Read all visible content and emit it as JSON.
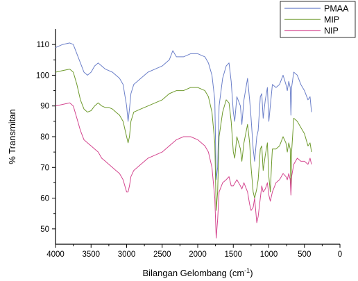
{
  "chart_data": {
    "type": "line",
    "xlabel": "Bilangan Gelombang (cm",
    "xlabel_sup": "-1",
    "xlabel_end": ")",
    "ylabel": "% Transmitan",
    "xlim": [
      4000,
      0
    ],
    "ylim": [
      45,
      115
    ],
    "x_ticks": [
      4000,
      3500,
      3000,
      2500,
      2000,
      1500,
      1000,
      500,
      0
    ],
    "y_ticks": [
      50,
      60,
      70,
      80,
      90,
      100,
      110
    ],
    "legend_position": "top-right",
    "grid": false,
    "series": [
      {
        "name": "PMAA",
        "color": "#6b7fc9",
        "points": [
          [
            4000,
            109
          ],
          [
            3900,
            110
          ],
          [
            3800,
            110.5
          ],
          [
            3750,
            110
          ],
          [
            3700,
            107
          ],
          [
            3650,
            104
          ],
          [
            3600,
            101
          ],
          [
            3550,
            100
          ],
          [
            3500,
            101
          ],
          [
            3450,
            103
          ],
          [
            3400,
            104
          ],
          [
            3350,
            103
          ],
          [
            3300,
            102
          ],
          [
            3250,
            101.5
          ],
          [
            3200,
            101
          ],
          [
            3150,
            100
          ],
          [
            3100,
            99
          ],
          [
            3050,
            97
          ],
          [
            3000,
            90
          ],
          [
            2980,
            85
          ],
          [
            2960,
            89
          ],
          [
            2940,
            94
          ],
          [
            2900,
            97
          ],
          [
            2800,
            99
          ],
          [
            2700,
            101
          ],
          [
            2600,
            102
          ],
          [
            2500,
            103
          ],
          [
            2400,
            105
          ],
          [
            2350,
            108
          ],
          [
            2300,
            106
          ],
          [
            2200,
            106
          ],
          [
            2100,
            107
          ],
          [
            2000,
            107
          ],
          [
            1900,
            106
          ],
          [
            1850,
            104
          ],
          [
            1800,
            100
          ],
          [
            1760,
            92
          ],
          [
            1740,
            66
          ],
          [
            1720,
            70
          ],
          [
            1700,
            90
          ],
          [
            1650,
            99
          ],
          [
            1600,
            103
          ],
          [
            1560,
            104
          ],
          [
            1530,
            98
          ],
          [
            1500,
            88
          ],
          [
            1480,
            85
          ],
          [
            1450,
            93
          ],
          [
            1400,
            90
          ],
          [
            1380,
            84
          ],
          [
            1350,
            92
          ],
          [
            1300,
            99
          ],
          [
            1270,
            92
          ],
          [
            1250,
            86
          ],
          [
            1220,
            76
          ],
          [
            1200,
            72
          ],
          [
            1170,
            80
          ],
          [
            1150,
            82
          ],
          [
            1120,
            93
          ],
          [
            1100,
            94
          ],
          [
            1080,
            86
          ],
          [
            1050,
            92
          ],
          [
            1020,
            96
          ],
          [
            1000,
            85
          ],
          [
            980,
            90
          ],
          [
            950,
            97
          ],
          [
            900,
            96
          ],
          [
            850,
            97
          ],
          [
            800,
            100
          ],
          [
            760,
            97
          ],
          [
            740,
            95
          ],
          [
            720,
            98
          ],
          [
            700,
            96
          ],
          [
            690,
            87
          ],
          [
            680,
            96
          ],
          [
            650,
            101
          ],
          [
            600,
            100
          ],
          [
            550,
            97
          ],
          [
            500,
            95
          ],
          [
            450,
            92
          ],
          [
            420,
            93
          ],
          [
            400,
            88
          ]
        ]
      },
      {
        "name": "MIP",
        "color": "#6e9a2c",
        "points": [
          [
            4000,
            101
          ],
          [
            3900,
            101.5
          ],
          [
            3800,
            102
          ],
          [
            3750,
            101
          ],
          [
            3700,
            97
          ],
          [
            3650,
            92
          ],
          [
            3600,
            89
          ],
          [
            3550,
            88
          ],
          [
            3500,
            88.5
          ],
          [
            3450,
            90
          ],
          [
            3400,
            91
          ],
          [
            3350,
            90
          ],
          [
            3300,
            89.5
          ],
          [
            3250,
            89.5
          ],
          [
            3200,
            89
          ],
          [
            3150,
            88
          ],
          [
            3100,
            87
          ],
          [
            3050,
            85
          ],
          [
            3000,
            80
          ],
          [
            2980,
            78
          ],
          [
            2960,
            80
          ],
          [
            2940,
            85
          ],
          [
            2900,
            88
          ],
          [
            2800,
            89
          ],
          [
            2700,
            90
          ],
          [
            2600,
            91
          ],
          [
            2500,
            92
          ],
          [
            2400,
            94
          ],
          [
            2300,
            95
          ],
          [
            2200,
            95
          ],
          [
            2100,
            96
          ],
          [
            2000,
            96
          ],
          [
            1900,
            95
          ],
          [
            1850,
            93
          ],
          [
            1800,
            88
          ],
          [
            1760,
            78
          ],
          [
            1740,
            56
          ],
          [
            1720,
            62
          ],
          [
            1700,
            80
          ],
          [
            1650,
            88
          ],
          [
            1600,
            92
          ],
          [
            1560,
            91
          ],
          [
            1530,
            85
          ],
          [
            1500,
            75
          ],
          [
            1480,
            73
          ],
          [
            1450,
            80
          ],
          [
            1400,
            76
          ],
          [
            1380,
            72
          ],
          [
            1350,
            78
          ],
          [
            1300,
            84
          ],
          [
            1270,
            78
          ],
          [
            1250,
            70
          ],
          [
            1220,
            62
          ],
          [
            1200,
            60
          ],
          [
            1170,
            63
          ],
          [
            1150,
            66
          ],
          [
            1120,
            76
          ],
          [
            1100,
            77
          ],
          [
            1080,
            69
          ],
          [
            1050,
            74
          ],
          [
            1020,
            78
          ],
          [
            1000,
            67
          ],
          [
            980,
            62
          ],
          [
            960,
            72
          ],
          [
            950,
            76
          ],
          [
            900,
            76
          ],
          [
            850,
            77
          ],
          [
            800,
            80
          ],
          [
            760,
            78
          ],
          [
            740,
            75
          ],
          [
            720,
            78
          ],
          [
            700,
            76
          ],
          [
            690,
            63
          ],
          [
            680,
            75
          ],
          [
            650,
            86
          ],
          [
            600,
            85
          ],
          [
            550,
            83
          ],
          [
            500,
            81
          ],
          [
            450,
            77
          ],
          [
            420,
            78
          ],
          [
            400,
            75
          ]
        ]
      },
      {
        "name": "NIP",
        "color": "#d4468f",
        "points": [
          [
            4000,
            90
          ],
          [
            3900,
            90.5
          ],
          [
            3800,
            91
          ],
          [
            3750,
            90
          ],
          [
            3700,
            86
          ],
          [
            3650,
            82
          ],
          [
            3600,
            79
          ],
          [
            3550,
            78
          ],
          [
            3500,
            77
          ],
          [
            3450,
            76
          ],
          [
            3400,
            75
          ],
          [
            3350,
            73
          ],
          [
            3300,
            72
          ],
          [
            3250,
            71
          ],
          [
            3200,
            70
          ],
          [
            3150,
            69
          ],
          [
            3100,
            68
          ],
          [
            3050,
            66
          ],
          [
            3000,
            62
          ],
          [
            2980,
            62
          ],
          [
            2960,
            64
          ],
          [
            2940,
            67
          ],
          [
            2900,
            69
          ],
          [
            2800,
            71
          ],
          [
            2700,
            73
          ],
          [
            2600,
            74
          ],
          [
            2500,
            75
          ],
          [
            2400,
            77
          ],
          [
            2300,
            79
          ],
          [
            2200,
            80
          ],
          [
            2100,
            80
          ],
          [
            2000,
            79
          ],
          [
            1900,
            77
          ],
          [
            1850,
            75
          ],
          [
            1800,
            70
          ],
          [
            1760,
            60
          ],
          [
            1740,
            47
          ],
          [
            1720,
            53
          ],
          [
            1700,
            62
          ],
          [
            1650,
            65
          ],
          [
            1600,
            66
          ],
          [
            1560,
            67
          ],
          [
            1530,
            64
          ],
          [
            1500,
            64
          ],
          [
            1450,
            66
          ],
          [
            1400,
            64
          ],
          [
            1380,
            63
          ],
          [
            1350,
            65
          ],
          [
            1300,
            62
          ],
          [
            1270,
            58
          ],
          [
            1250,
            56
          ],
          [
            1220,
            57
          ],
          [
            1200,
            60
          ],
          [
            1170,
            52
          ],
          [
            1150,
            54
          ],
          [
            1120,
            60
          ],
          [
            1100,
            64
          ],
          [
            1080,
            62
          ],
          [
            1050,
            63
          ],
          [
            1020,
            65
          ],
          [
            1000,
            61
          ],
          [
            980,
            59
          ],
          [
            950,
            62
          ],
          [
            900,
            65
          ],
          [
            850,
            66
          ],
          [
            800,
            68
          ],
          [
            760,
            67
          ],
          [
            740,
            66
          ],
          [
            720,
            68
          ],
          [
            700,
            66
          ],
          [
            690,
            61
          ],
          [
            680,
            67
          ],
          [
            650,
            71
          ],
          [
            600,
            73
          ],
          [
            550,
            72
          ],
          [
            500,
            72
          ],
          [
            450,
            71
          ],
          [
            420,
            73
          ],
          [
            400,
            71
          ]
        ]
      }
    ]
  }
}
